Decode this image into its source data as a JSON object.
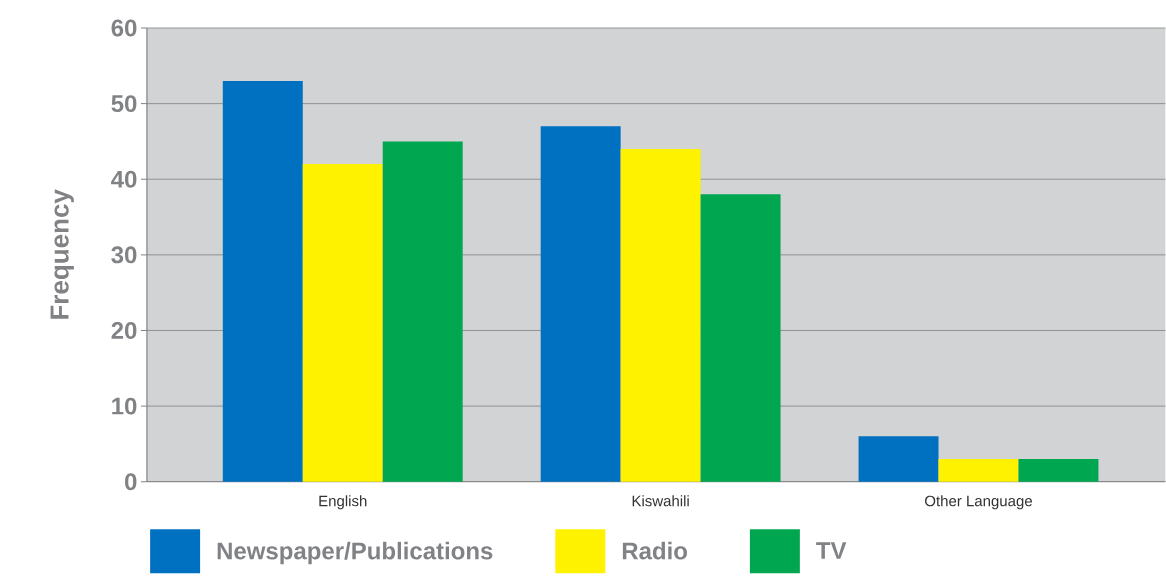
{
  "chart_data": {
    "type": "bar",
    "ylabel": "Frequency",
    "categories": [
      "English",
      "Kiswahili",
      "Other Language"
    ],
    "series": [
      {
        "name": "Newspaper/Publications",
        "color": "#0070c0",
        "values": [
          53,
          47,
          6
        ]
      },
      {
        "name": "Radio",
        "color": "#fff200",
        "values": [
          42,
          44,
          3
        ]
      },
      {
        "name": "TV",
        "color": "#00a650",
        "values": [
          45,
          38,
          3
        ]
      }
    ],
    "ylim": [
      0,
      60
    ],
    "yticks": [
      0,
      10,
      20,
      30,
      40,
      50,
      60
    ],
    "grid": "y",
    "legend": "bottom"
  }
}
